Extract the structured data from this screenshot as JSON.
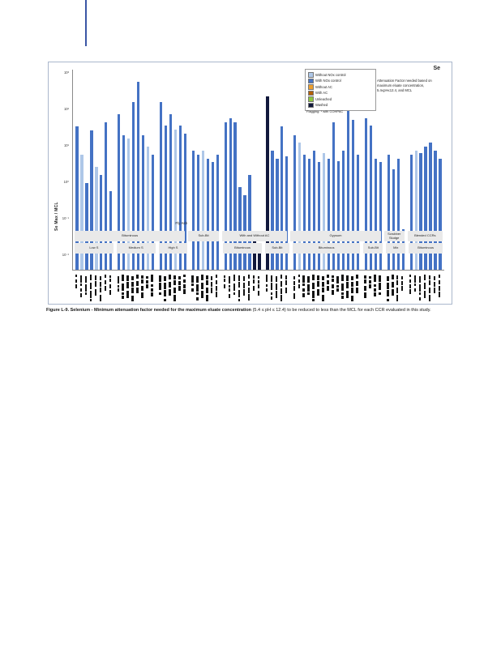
{
  "figure": {
    "corner_label": "Se",
    "y_axis_label": "Se Max / MCL",
    "legend": {
      "items": [
        {
          "label": "Without NOx control",
          "color": "#aec7e8"
        },
        {
          "label": "With NOx control",
          "color": "#4472c4"
        },
        {
          "label": "Without AC",
          "color": "#ed9f2d"
        },
        {
          "label": "With AC",
          "color": "#b45f06"
        },
        {
          "label": "Unleached",
          "color": "#8cc63f"
        },
        {
          "label": "Washed",
          "color": "#11183c"
        }
      ],
      "footnote": "Flagging: * with COHPAC"
    },
    "annotation": "Attenuation Factor needed based on maximum eluate concentration, 5.4≤pH≤12.4, and MCL"
  },
  "chart_data": {
    "type": "bar",
    "y_log": true,
    "ylim": [
      0.0038,
      1175
    ],
    "ylabel": "Se Max / MCL",
    "y_ticks": [
      {
        "value": 1000,
        "label": "10³"
      },
      {
        "value": 100,
        "label": "10²"
      },
      {
        "value": 10,
        "label": "10¹"
      },
      {
        "value": 1,
        "label": "10⁰"
      },
      {
        "value": 0.1,
        "label": "10⁻¹"
      },
      {
        "value": 0.01,
        "label": "10⁻²"
      }
    ],
    "palette": {
      "lb": "#aec7e8",
      "b": "#4472c4",
      "o": "#ed9f2d",
      "d": "#b45f06",
      "g": "#8cc63f",
      "k": "#11183c"
    },
    "groups": [
      {
        "name": "Fly Ash Bituminous Low S",
        "values": [
          32,
          5.4,
          0.9,
          25,
          2.5,
          1.5,
          42,
          0.54
        ],
        "colors": [
          "b",
          "lb",
          "b",
          "b",
          "lb",
          "b",
          "b",
          "b"
        ]
      },
      {
        "name": "Fly Ash Bituminous Medium S",
        "values": [
          70,
          19,
          15,
          150,
          540,
          19,
          9,
          5.4
        ],
        "colors": [
          "b",
          "b",
          "lb",
          "b",
          "b",
          "b",
          "lb",
          "b"
        ]
      },
      {
        "name": "Fly Ash Bituminous High S",
        "values": [
          150,
          34,
          70,
          26,
          34,
          21
        ],
        "colors": [
          "b",
          "b",
          "b",
          "lb",
          "b",
          "b"
        ]
      },
      {
        "name": "Fly Ash Sub-Bit",
        "values": [
          7,
          5.4,
          7,
          4.3,
          3.4,
          5.4
        ],
        "colors": [
          "b",
          "b",
          "lb",
          "b",
          "b",
          "b"
        ]
      },
      {
        "name": "With and Without AC Bituminous",
        "values": [
          42,
          54,
          42,
          0.7,
          0.42,
          1.5,
          0.03,
          0.02
        ],
        "colors": [
          "b",
          "b",
          "b",
          "b",
          "b",
          "b",
          "k",
          "k"
        ]
      },
      {
        "name": "With and Without AC Sub-Bit",
        "values": [
          215,
          7,
          4.3,
          32,
          5
        ],
        "colors": [
          "k",
          "b",
          "b",
          "b",
          "b"
        ]
      },
      {
        "name": "Gypsum Bituminous",
        "values": [
          19,
          12,
          5.4,
          4.3,
          7,
          3.4,
          6,
          4.3,
          43,
          3.6,
          7,
          90,
          48,
          5.4
        ],
        "colors": [
          "b",
          "lb",
          "b",
          "b",
          "b",
          "b",
          "lb",
          "b",
          "b",
          "b",
          "b",
          "b",
          "b",
          "b"
        ]
      },
      {
        "name": "Gypsum Sub-Bit",
        "values": [
          54,
          34,
          4.3,
          3.4
        ],
        "colors": [
          "b",
          "b",
          "b",
          "b"
        ]
      },
      {
        "name": "Scrubber Sludge Mix",
        "values": [
          5.4,
          2.2,
          4.3,
          0.05
        ],
        "colors": [
          "b",
          "b",
          "b",
          "b"
        ]
      },
      {
        "name": "Blended CCRs Bituminous",
        "values": [
          5.4,
          7,
          6,
          9,
          12,
          7,
          4.3
        ],
        "colors": [
          "b",
          "lb",
          "b",
          "b",
          "b",
          "b",
          "b"
        ]
      }
    ],
    "band_row1": [
      {
        "label": "Bituminous",
        "from": 0,
        "to": 3
      },
      {
        "label": "Sub-Bit",
        "from": 3,
        "to": 4
      },
      {
        "label": "With and Without AC",
        "from": 4,
        "to": 6
      },
      {
        "label": "Gypsum",
        "from": 6,
        "to": 8
      },
      {
        "label": "Scrubber Sludge",
        "from": 8,
        "to": 9
      },
      {
        "label": "Blended CCRs",
        "from": 9,
        "to": 10
      }
    ],
    "band_row2": [
      {
        "label": "Low S",
        "from": 0,
        "to": 1
      },
      {
        "label": "Medium S",
        "from": 1,
        "to": 2
      },
      {
        "label": "High S",
        "from": 2,
        "to": 3
      },
      {
        "label": "",
        "from": 3,
        "to": 4
      },
      {
        "label": "Bituminous",
        "from": 4,
        "to": 5
      },
      {
        "label": "Sub-Bit",
        "from": 5,
        "to": 6
      },
      {
        "label": "Bituminous",
        "from": 6,
        "to": 7
      },
      {
        "label": "Sub-Bit",
        "from": 7,
        "to": 8
      },
      {
        "label": "Mix",
        "from": 8,
        "to": 9
      },
      {
        "label": "Bituminous",
        "from": 9,
        "to": 10
      }
    ],
    "top_labels": [
      {
        "label": "Fly Ash",
        "from": 0,
        "to": 6
      },
      {
        "label": "",
        "from": 6,
        "to": 10
      }
    ]
  },
  "caption": {
    "bold": "Figure L-9.  Selenium - Minimum attenuation factor needed for the maximum eluate concentration",
    "rest": " (5.4 ≤ pH ≤ 12.4) to be reduced to less than the MCL for each CCR evaluated in this study."
  }
}
